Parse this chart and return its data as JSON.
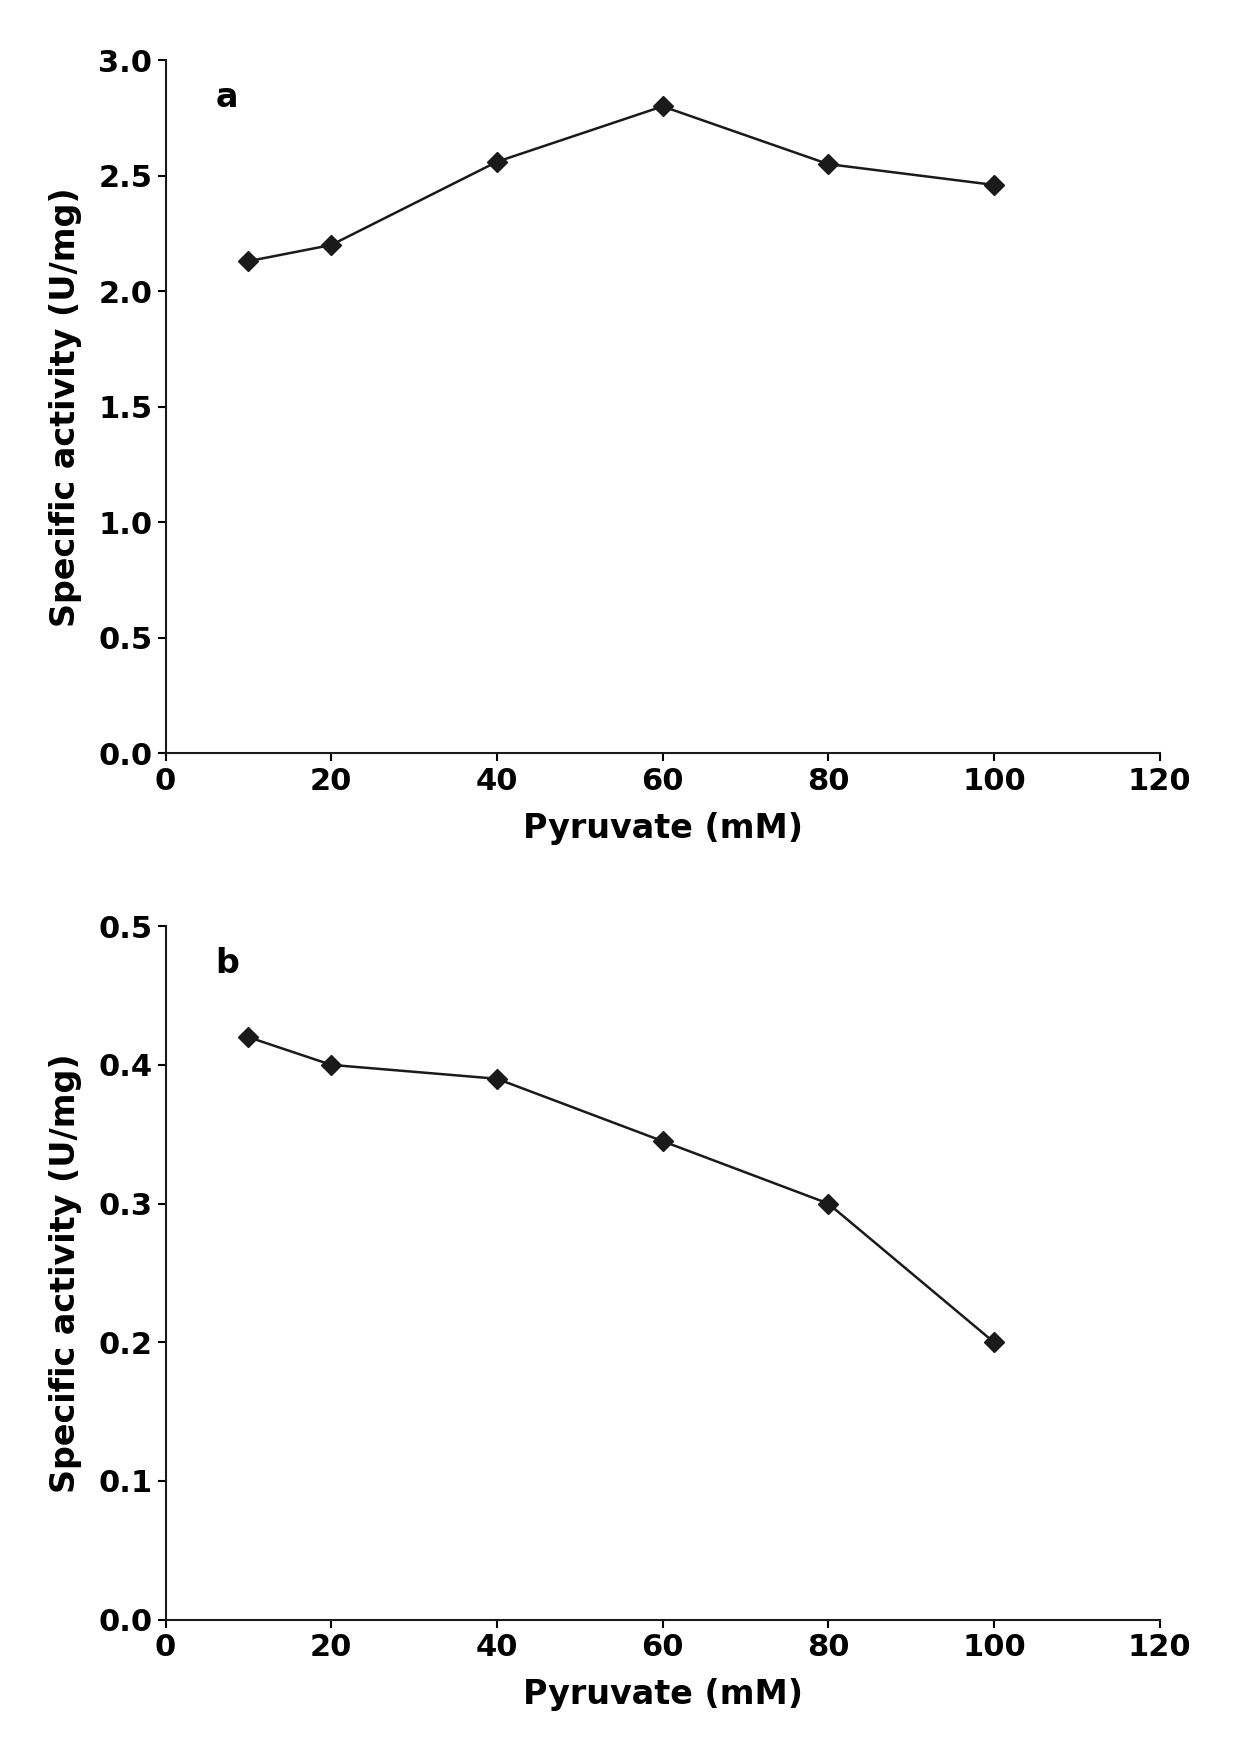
{
  "panel_a": {
    "x": [
      10,
      20,
      40,
      60,
      80,
      100
    ],
    "y": [
      2.13,
      2.2,
      2.56,
      2.8,
      2.55,
      2.46
    ],
    "xlabel": "Pyruvate (mM)",
    "ylabel": "Specific activity (U/mg)",
    "xlim": [
      0,
      120
    ],
    "ylim": [
      0.0,
      3.0
    ],
    "xticks": [
      0,
      20,
      40,
      60,
      80,
      100,
      120
    ],
    "yticks": [
      0.0,
      0.5,
      1.0,
      1.5,
      2.0,
      2.5,
      3.0
    ],
    "label": "a"
  },
  "panel_b": {
    "x": [
      10,
      20,
      40,
      60,
      80,
      100
    ],
    "y": [
      0.42,
      0.4,
      0.39,
      0.345,
      0.3,
      0.2
    ],
    "xlabel": "Pyruvate (mM)",
    "ylabel": "Specific activity (U/mg)",
    "xlim": [
      0,
      120
    ],
    "ylim": [
      0.0,
      0.5
    ],
    "xticks": [
      0,
      20,
      40,
      60,
      80,
      100,
      120
    ],
    "yticks": [
      0.0,
      0.1,
      0.2,
      0.3,
      0.4,
      0.5
    ],
    "label": "b"
  },
  "marker_color": "#1a1a1a",
  "line_color": "#1a1a1a",
  "marker": "D",
  "marker_size": 10,
  "line_width": 1.8,
  "tick_fontsize": 22,
  "label_fontsize": 24,
  "panel_label_fontsize": 24,
  "background_color": "#ffffff",
  "fig_width": 12.4,
  "fig_height": 17.6,
  "fig_dpi": 100
}
